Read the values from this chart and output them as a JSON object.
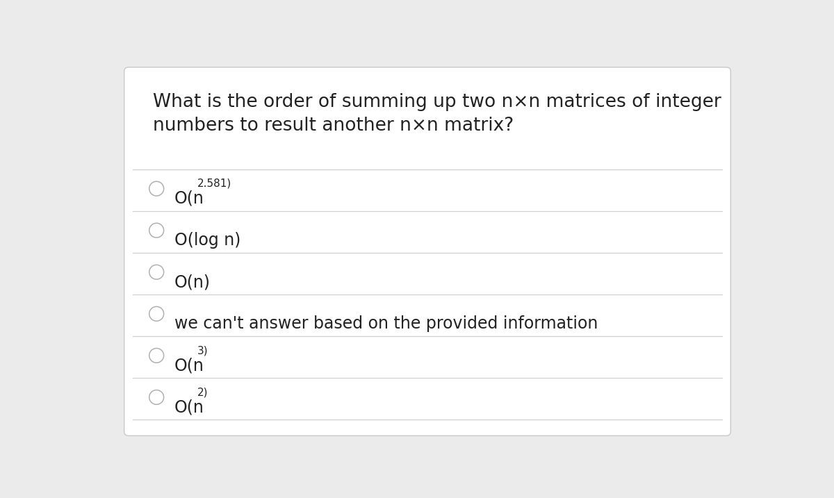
{
  "title_line1": "What is the order of summing up two n×n matrices of integer",
  "title_line2": "numbers to result another n×n matrix?",
  "options": [
    {
      "text": "O(n",
      "superscript": "2.581",
      "after": ")"
    },
    {
      "text": "O(log n)",
      "superscript": null,
      "after": ""
    },
    {
      "text": "O(n)",
      "superscript": null,
      "after": ""
    },
    {
      "text": "we can't answer based on the provided information",
      "superscript": null,
      "after": ""
    },
    {
      "text": "O(n",
      "superscript": "3",
      "after": ")"
    },
    {
      "text": "O(n",
      "superscript": "2",
      "after": ")"
    }
  ],
  "bg_color": "#ebebeb",
  "card_color": "#ffffff",
  "border_color": "#c8c8c8",
  "text_color": "#222222",
  "circle_edge_color": "#b0b0b0",
  "line_color": "#d0d0d0",
  "title_fontsize": 19,
  "option_fontsize": 17,
  "sup_fontsize": 11
}
